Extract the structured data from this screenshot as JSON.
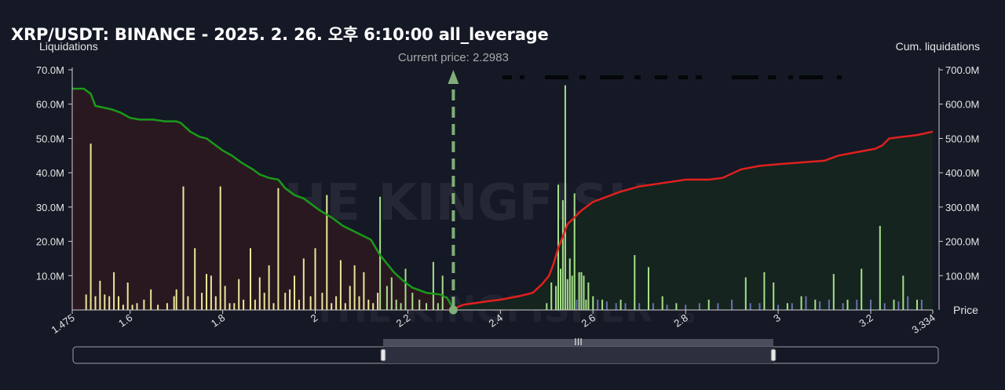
{
  "title": "XRP/USDT: BINANCE - 2025. 2. 26. 오후 6:10:00 all_leverage",
  "watermark": {
    "text": "THE KINGFISHER",
    "suffix": ".io"
  },
  "colors": {
    "background": "#151825",
    "short_fill": "#2a1820",
    "long_fill": "#15241f",
    "short_cum_line": "#1a9a1a",
    "long_cum_line": "#e0201e",
    "short_bar": "#e8e89a",
    "long_bar": "#a6e08a",
    "minor_bar": "#6a70b0",
    "price_marker": "#7fae7a"
  },
  "chart_data": {
    "type": "bar",
    "xlabel": "Price",
    "ylabel_left": "Liquidations",
    "ylabel_right": "Cum. liquidations",
    "current_price_label": "Current price: 2.2983",
    "current_price": 2.2983,
    "xlim": [
      1.475,
      3.334
    ],
    "ylim_left": [
      0,
      70000000
    ],
    "ylim_right": [
      0,
      700000000
    ],
    "x_ticks": [
      {
        "v": 1.475,
        "label": "1.475"
      },
      {
        "v": 1.6,
        "label": "1.6"
      },
      {
        "v": 1.8,
        "label": "1.8"
      },
      {
        "v": 2.0,
        "label": "2"
      },
      {
        "v": 2.2,
        "label": "2.2"
      },
      {
        "v": 2.4,
        "label": "2.4"
      },
      {
        "v": 2.6,
        "label": "2.6"
      },
      {
        "v": 2.8,
        "label": "2.8"
      },
      {
        "v": 3.0,
        "label": "3"
      },
      {
        "v": 3.2,
        "label": "3.2"
      },
      {
        "v": 3.334,
        "label": "3.334"
      }
    ],
    "y_ticks_left": [
      {
        "v": 10000000,
        "label": "10.0M"
      },
      {
        "v": 20000000,
        "label": "20.0M"
      },
      {
        "v": 30000000,
        "label": "30.0M"
      },
      {
        "v": 40000000,
        "label": "40.0M"
      },
      {
        "v": 50000000,
        "label": "50.0M"
      },
      {
        "v": 60000000,
        "label": "60.0M"
      },
      {
        "v": 70000000,
        "label": "70.0M"
      }
    ],
    "y_ticks_right": [
      {
        "v": 100000000,
        "label": "100.0M"
      },
      {
        "v": 200000000,
        "label": "200.0M"
      },
      {
        "v": 300000000,
        "label": "300.0M"
      },
      {
        "v": 400000000,
        "label": "400.0M"
      },
      {
        "v": 500000000,
        "label": "500.0M"
      },
      {
        "v": 600000000,
        "label": "600.0M"
      },
      {
        "v": 700000000,
        "label": "700.0M"
      }
    ],
    "short_bars": [
      [
        1.505,
        4.5
      ],
      [
        1.515,
        48.5
      ],
      [
        1.525,
        4
      ],
      [
        1.535,
        8.5
      ],
      [
        1.545,
        4.5
      ],
      [
        1.555,
        4
      ],
      [
        1.565,
        11
      ],
      [
        1.575,
        4
      ],
      [
        1.585,
        1.5
      ],
      [
        1.595,
        8
      ],
      [
        1.605,
        1.5
      ],
      [
        1.615,
        2
      ],
      [
        1.63,
        3
      ],
      [
        1.645,
        6
      ],
      [
        1.66,
        1.5
      ],
      [
        1.68,
        2
      ],
      [
        1.695,
        4
      ],
      [
        1.7,
        6
      ],
      [
        1.715,
        36
      ],
      [
        1.725,
        4
      ],
      [
        1.74,
        18
      ],
      [
        1.755,
        5
      ],
      [
        1.765,
        10.5
      ],
      [
        1.775,
        10
      ],
      [
        1.785,
        4
      ],
      [
        1.795,
        36
      ],
      [
        1.805,
        7
      ],
      [
        1.815,
        2
      ],
      [
        1.825,
        2
      ],
      [
        1.835,
        9
      ],
      [
        1.845,
        3
      ],
      [
        1.86,
        18
      ],
      [
        1.87,
        3
      ],
      [
        1.88,
        9.5
      ],
      [
        1.89,
        5
      ],
      [
        1.9,
        13
      ],
      [
        1.91,
        2
      ],
      [
        1.92,
        35.5
      ],
      [
        1.935,
        5
      ],
      [
        1.945,
        6
      ],
      [
        1.955,
        10
      ],
      [
        1.965,
        3
      ],
      [
        1.975,
        15
      ],
      [
        1.99,
        4
      ],
      [
        2.0,
        18
      ],
      [
        2.015,
        5
      ],
      [
        2.025,
        33.5
      ],
      [
        2.035,
        2
      ],
      [
        2.045,
        4
      ],
      [
        2.055,
        14.5
      ],
      [
        2.065,
        2
      ],
      [
        2.075,
        7
      ],
      [
        2.085,
        13
      ],
      [
        2.095,
        4
      ],
      [
        2.105,
        11
      ],
      [
        2.115,
        3
      ],
      [
        2.125,
        2
      ],
      [
        2.135,
        5
      ]
    ],
    "short_bars_green": [
      [
        2.14,
        33
      ],
      [
        2.155,
        7
      ],
      [
        2.165,
        9.5
      ],
      [
        2.175,
        3
      ],
      [
        2.185,
        2
      ],
      [
        2.195,
        12
      ],
      [
        2.21,
        5
      ],
      [
        2.225,
        3
      ],
      [
        2.24,
        2
      ],
      [
        2.255,
        14
      ],
      [
        2.265,
        2
      ],
      [
        2.275,
        10
      ]
    ],
    "long_bars": [
      [
        2.5,
        2
      ],
      [
        2.51,
        8
      ],
      [
        2.52,
        7
      ],
      [
        2.525,
        36.5
      ],
      [
        2.53,
        12
      ],
      [
        2.535,
        32
      ],
      [
        2.54,
        65.5
      ],
      [
        2.545,
        9
      ],
      [
        2.55,
        15
      ],
      [
        2.555,
        10
      ],
      [
        2.56,
        34
      ],
      [
        2.57,
        11
      ],
      [
        2.575,
        11
      ],
      [
        2.58,
        10
      ],
      [
        2.585,
        3
      ],
      [
        2.59,
        8
      ],
      [
        2.6,
        4
      ],
      [
        2.62,
        3
      ],
      [
        2.66,
        3
      ],
      [
        2.69,
        16
      ],
      [
        2.72,
        12.5
      ],
      [
        2.75,
        4
      ],
      [
        2.78,
        2
      ],
      [
        2.85,
        3
      ],
      [
        2.93,
        9.5
      ],
      [
        2.97,
        11
      ],
      [
        2.99,
        8
      ],
      [
        3.02,
        2
      ],
      [
        3.05,
        4
      ],
      [
        3.08,
        3
      ],
      [
        3.12,
        10.5
      ],
      [
        3.15,
        3
      ],
      [
        3.18,
        12
      ],
      [
        3.22,
        24.5
      ],
      [
        3.25,
        3
      ],
      [
        3.27,
        10
      ],
      [
        3.3,
        3
      ]
    ],
    "minor_bars": [
      [
        2.565,
        3
      ],
      [
        2.59,
        3
      ],
      [
        2.61,
        3
      ],
      [
        2.63,
        2.5
      ],
      [
        2.65,
        2
      ],
      [
        2.67,
        2
      ],
      [
        2.7,
        2
      ],
      [
        2.73,
        2
      ],
      [
        2.76,
        1.5
      ],
      [
        2.8,
        1.5
      ],
      [
        2.83,
        2
      ],
      [
        2.87,
        2
      ],
      [
        2.9,
        3
      ],
      [
        2.94,
        2
      ],
      [
        2.96,
        2
      ],
      [
        3.0,
        1.5
      ],
      [
        3.03,
        2
      ],
      [
        3.06,
        4
      ],
      [
        3.09,
        2.5
      ],
      [
        3.11,
        3
      ],
      [
        3.14,
        2
      ],
      [
        3.17,
        3
      ],
      [
        3.2,
        3
      ],
      [
        3.23,
        2
      ],
      [
        3.26,
        2.5
      ],
      [
        3.28,
        4
      ],
      [
        3.31,
        3
      ]
    ],
    "short_cum": [
      [
        1.475,
        645
      ],
      [
        1.5,
        645
      ],
      [
        1.515,
        630
      ],
      [
        1.525,
        595
      ],
      [
        1.56,
        585
      ],
      [
        1.58,
        575
      ],
      [
        1.6,
        560
      ],
      [
        1.62,
        555
      ],
      [
        1.65,
        555
      ],
      [
        1.675,
        550
      ],
      [
        1.7,
        550
      ],
      [
        1.71,
        545
      ],
      [
        1.73,
        520
      ],
      [
        1.75,
        505
      ],
      [
        1.765,
        500
      ],
      [
        1.785,
        480
      ],
      [
        1.8,
        465
      ],
      [
        1.82,
        450
      ],
      [
        1.84,
        430
      ],
      [
        1.865,
        410
      ],
      [
        1.88,
        395
      ],
      [
        1.9,
        385
      ],
      [
        1.92,
        380
      ],
      [
        1.935,
        355
      ],
      [
        1.955,
        335
      ],
      [
        1.975,
        325
      ],
      [
        1.99,
        310
      ],
      [
        2.01,
        290
      ],
      [
        2.035,
        270
      ],
      [
        2.06,
        245
      ],
      [
        2.09,
        225
      ],
      [
        2.12,
        205
      ],
      [
        2.14,
        160
      ],
      [
        2.155,
        135
      ],
      [
        2.17,
        110
      ],
      [
        2.19,
        85
      ],
      [
        2.21,
        65
      ],
      [
        2.24,
        50
      ],
      [
        2.27,
        45
      ],
      [
        2.285,
        35
      ],
      [
        2.2983,
        0
      ]
    ],
    "long_cum": [
      [
        2.2983,
        0
      ],
      [
        2.32,
        15
      ],
      [
        2.37,
        25
      ],
      [
        2.4,
        30
      ],
      [
        2.44,
        40
      ],
      [
        2.47,
        50
      ],
      [
        2.49,
        75
      ],
      [
        2.505,
        100
      ],
      [
        2.515,
        135
      ],
      [
        2.525,
        180
      ],
      [
        2.535,
        215
      ],
      [
        2.545,
        250
      ],
      [
        2.56,
        270
      ],
      [
        2.575,
        290
      ],
      [
        2.6,
        315
      ],
      [
        2.63,
        330
      ],
      [
        2.66,
        345
      ],
      [
        2.7,
        360
      ],
      [
        2.75,
        370
      ],
      [
        2.8,
        380
      ],
      [
        2.85,
        380
      ],
      [
        2.88,
        385
      ],
      [
        2.92,
        410
      ],
      [
        2.96,
        420
      ],
      [
        3.0,
        425
      ],
      [
        3.05,
        430
      ],
      [
        3.1,
        435
      ],
      [
        3.13,
        450
      ],
      [
        3.17,
        460
      ],
      [
        3.21,
        470
      ],
      [
        3.225,
        480
      ],
      [
        3.24,
        500
      ],
      [
        3.27,
        505
      ],
      [
        3.3,
        510
      ],
      [
        3.334,
        520
      ]
    ],
    "grid": false,
    "legend": "none"
  },
  "slider": {
    "handle_glyph": "III"
  }
}
